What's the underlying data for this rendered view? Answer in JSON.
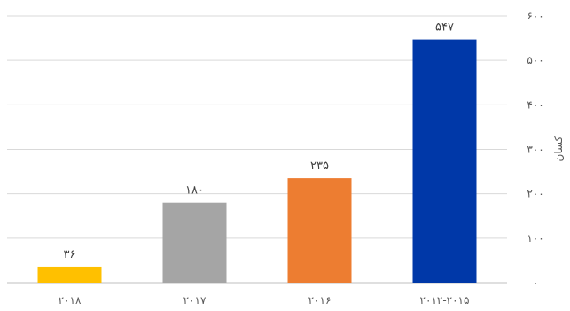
{
  "chart_data": {
    "type": "bar",
    "categories": [
      "۲۰۱۸",
      "۲۰۱۷",
      "۲۰۱۶",
      "۲۰۱۲-۲۰۱۵"
    ],
    "values": [
      36,
      180,
      235,
      547
    ],
    "value_labels": [
      "۳۶",
      "۱۸۰",
      "۲۳۵",
      "۵۴۷"
    ],
    "colors": [
      "#FFC000",
      "#A5A5A5",
      "#ED7D31",
      "#0038A8"
    ],
    "ylabel": "کسان",
    "ylim": [
      0,
      600
    ],
    "y_ticks": [
      0,
      100,
      200,
      300,
      400,
      500,
      600
    ],
    "y_tick_labels": [
      "۰",
      "۱۰۰",
      "۲۰۰",
      "۳۰۰",
      "۴۰۰",
      "۵۰۰",
      "۶۰۰"
    ],
    "y_axis_side": "right",
    "grid": true,
    "legend": "none"
  }
}
